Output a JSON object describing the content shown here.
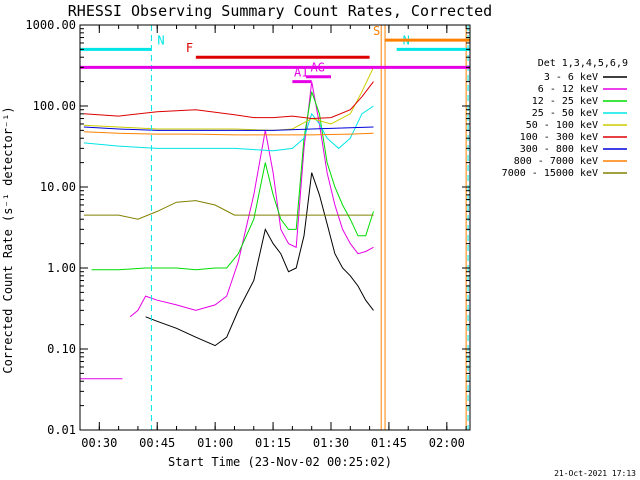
{
  "chart_data": {
    "type": "line",
    "title": "RHESSI Observing Summary Count Rates, Corrected",
    "xlabel": "Start Time (23-Nov-02 00:25:02)",
    "ylabel": "Corrected Count Rate (s⁻¹ detector⁻¹)",
    "yscale": "log",
    "ylim": [
      0.01,
      1000
    ],
    "xlim_minutes": [
      25.0,
      126.0
    ],
    "x_ticks": [
      {
        "t": 30,
        "label": "00:30"
      },
      {
        "t": 45,
        "label": "00:45"
      },
      {
        "t": 60,
        "label": "01:00"
      },
      {
        "t": 75,
        "label": "01:15"
      },
      {
        "t": 90,
        "label": "01:30"
      },
      {
        "t": 105,
        "label": "01:45"
      },
      {
        "t": 120,
        "label": "02:00"
      }
    ],
    "y_ticks": [
      {
        "v": 1000,
        "label": "1000.00"
      },
      {
        "v": 100,
        "label": "100.00"
      },
      {
        "v": 10,
        "label": "10.00"
      },
      {
        "v": 1,
        "label": "1.00"
      },
      {
        "v": 0.1,
        "label": "0.10"
      },
      {
        "v": 0.01,
        "label": "0.01"
      }
    ],
    "legend_title": "Det 1,3,4,5,6,9",
    "legend_position": "right",
    "series": [
      {
        "name": "3 - 6 keV",
        "color": "#000000",
        "x": [
          42,
          45,
          50,
          55,
          60,
          63,
          66,
          70,
          73,
          75,
          77,
          79,
          81,
          83,
          85,
          87,
          89,
          91,
          93,
          95,
          97,
          99,
          101
        ],
        "y": [
          0.25,
          0.22,
          0.18,
          0.14,
          0.11,
          0.14,
          0.3,
          0.7,
          3.0,
          2.0,
          1.5,
          0.9,
          1.0,
          2.5,
          15,
          8,
          3.5,
          1.5,
          1.0,
          0.8,
          0.6,
          0.4,
          0.3
        ]
      },
      {
        "name": "6 - 12 keV",
        "color": "#e600e6",
        "x": [
          38,
          40,
          42,
          45,
          50,
          55,
          60,
          63,
          66,
          70,
          73,
          75,
          77,
          79,
          81,
          83,
          85,
          87,
          89,
          91,
          93,
          95,
          97,
          99,
          101
        ],
        "y": [
          0.25,
          0.3,
          0.45,
          0.4,
          0.35,
          0.3,
          0.35,
          0.45,
          1.2,
          8,
          50,
          15,
          3,
          2,
          1.8,
          30,
          200,
          60,
          15,
          6,
          3,
          2,
          1.5,
          1.6,
          1.8
        ]
      },
      {
        "name": "12 - 25 keV",
        "color": "#00dd00",
        "x": [
          28,
          35,
          42,
          45,
          50,
          55,
          60,
          63,
          66,
          70,
          73,
          75,
          77,
          79,
          81,
          83,
          85,
          87,
          89,
          91,
          93,
          95,
          97,
          99,
          101
        ],
        "y": [
          0.95,
          0.95,
          1.0,
          1.0,
          1.0,
          0.95,
          1.0,
          1.0,
          1.5,
          4,
          20,
          8,
          4,
          3,
          3,
          40,
          150,
          80,
          20,
          10,
          6,
          4,
          2.5,
          2.5,
          5
        ]
      },
      {
        "name": "25 - 50 keV",
        "color": "#00e6e6",
        "x": [
          26,
          35,
          45,
          55,
          65,
          75,
          80,
          83,
          85,
          87,
          89,
          92,
          95,
          98,
          101
        ],
        "y": [
          35,
          32,
          30,
          30,
          30,
          28,
          30,
          40,
          80,
          60,
          40,
          30,
          40,
          80,
          100
        ]
      },
      {
        "name": "50 - 100 keV",
        "color": "#cccc00",
        "x": [
          26,
          35,
          45,
          55,
          65,
          75,
          80,
          85,
          90,
          95,
          98,
          101
        ],
        "y": [
          58,
          55,
          52,
          52,
          52,
          50,
          52,
          70,
          60,
          80,
          150,
          300
        ]
      },
      {
        "name": "100 - 300 keV",
        "color": "#dd0000",
        "x": [
          26,
          35,
          45,
          55,
          65,
          70,
          75,
          80,
          85,
          90,
          95,
          98,
          101
        ],
        "y": [
          80,
          75,
          85,
          90,
          78,
          72,
          72,
          75,
          70,
          72,
          90,
          130,
          200
        ]
      },
      {
        "name": "300 - 800 keV",
        "color": "#0000dd",
        "x": [
          26,
          35,
          45,
          55,
          65,
          75,
          85,
          95,
          101
        ],
        "y": [
          55,
          52,
          50,
          50,
          50,
          50,
          52,
          54,
          55
        ]
      },
      {
        "name": "800 - 7000 keV",
        "color": "#ff8000",
        "x": [
          26,
          35,
          45,
          55,
          65,
          75,
          85,
          95,
          101
        ],
        "y": [
          48,
          46,
          45,
          45,
          44,
          44,
          44,
          45,
          46
        ]
      },
      {
        "name": "7000 - 15000 keV",
        "color": "#808000",
        "x": [
          26,
          35,
          40,
          45,
          50,
          55,
          60,
          65,
          75,
          85,
          95,
          101
        ],
        "y": [
          4.5,
          4.5,
          4.0,
          5.0,
          6.5,
          6.8,
          6.0,
          4.5,
          4.5,
          4.5,
          4.5,
          4.5
        ]
      }
    ],
    "annotations": [
      {
        "label": "N",
        "color": "#00e6e6",
        "t_start": 25,
        "t_end": 43.5,
        "level": 500
      },
      {
        "label": "N",
        "color": "#00e6e6",
        "t_start": 107,
        "t_end": 126,
        "level": 500
      },
      {
        "label": "F",
        "color": "#dd0000",
        "t_start": 55,
        "t_end": 100,
        "level": 400
      },
      {
        "label": "AG",
        "color": "#e600e6",
        "t_start": 83.5,
        "t_end": 90,
        "level": 230
      },
      {
        "label": "A1",
        "color": "#e600e6",
        "t_start": 80,
        "t_end": 85,
        "level": 200
      },
      {
        "label": "S",
        "color": "#ff8000",
        "t_start": 104,
        "t_end": 126,
        "level": 650
      },
      {
        "label": "",
        "color": "#e600e6",
        "t_start": 25,
        "t_end": 126,
        "level": 300
      }
    ],
    "vertical_lines": [
      {
        "t": 43.5,
        "color": "#00e6e6",
        "style": "dashed"
      },
      {
        "t": 125.5,
        "color": "#00e6e6",
        "style": "dashed"
      },
      {
        "t": 103,
        "color": "#ff8000",
        "style": "solid"
      },
      {
        "t": 104,
        "color": "#ff8000",
        "style": "solid"
      },
      {
        "t": 125,
        "color": "#ff8000",
        "style": "solid"
      }
    ],
    "low_segment": {
      "color": "#e600e6",
      "x": [
        25,
        36
      ],
      "y": 0.043
    },
    "footer_date": "21-Oct-2021 17:13"
  }
}
